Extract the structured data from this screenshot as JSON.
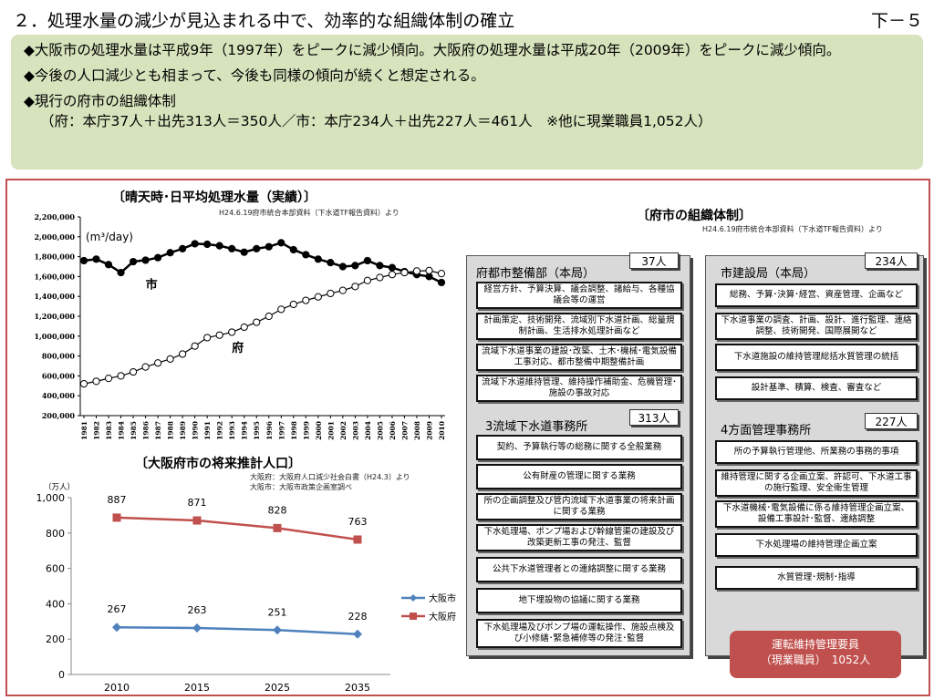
{
  "header": {
    "title": "２．処理水量の減少が見込まれる中で、効率的な組織体制の確立",
    "page": "下－５"
  },
  "summary": {
    "line1": "◆大阪市の処理水量は平成9年（1997年）をピークに減少傾向。大阪府の処理水量は平成20年（2009年）をピークに減少傾向。",
    "line2": "◆今後の人口減少とも相まって、今後も同様の傾向が続くと想定される。",
    "line3": "◆現行の府市の組織体制",
    "line4": "（府：本庁37人＋出先313人＝350人／市：本庁234人＋出先227人＝461人　※他に現業職員1,052人）"
  },
  "colors": {
    "accent": "#c0504d",
    "summary_bg": "#d6e3bc",
    "osaka_city_line": "#4f81bd",
    "osaka_pref_line": "#c0504d"
  },
  "chart_data": [
    {
      "type": "line",
      "title": "〔晴天時･日平均処理水量（実績）〕",
      "source": "H24.6.19府市統合本部資料（下水道TF報告資料）より",
      "unit_label": "(m³/day)",
      "x": [
        1981,
        1982,
        1983,
        1984,
        1985,
        1986,
        1987,
        1988,
        1989,
        1990,
        1991,
        1992,
        1993,
        1994,
        1995,
        1996,
        1997,
        1998,
        1999,
        2000,
        2001,
        2002,
        2003,
        2004,
        2005,
        2006,
        2007,
        2008,
        2009,
        2010
      ],
      "ylim": [
        200000,
        2200000
      ],
      "yticks": [
        "200,000",
        "400,000",
        "600,000",
        "800,000",
        "1,000,000",
        "1,200,000",
        "1,400,000",
        "1,600,000",
        "1,800,000",
        "2,000,000",
        "2,200,000"
      ],
      "series": [
        {
          "name": "市",
          "marker": "filled",
          "values": [
            1760000,
            1775000,
            1720000,
            1640000,
            1750000,
            1765000,
            1790000,
            1840000,
            1880000,
            1930000,
            1925000,
            1910000,
            1880000,
            1845000,
            1880000,
            1900000,
            1940000,
            1870000,
            1820000,
            1775000,
            1740000,
            1700000,
            1710000,
            1760000,
            1710000,
            1690000,
            1650000,
            1620000,
            1600000,
            1540000
          ]
        },
        {
          "name": "府",
          "marker": "open",
          "values": [
            520000,
            545000,
            575000,
            600000,
            640000,
            690000,
            730000,
            770000,
            820000,
            900000,
            985000,
            1010000,
            1040000,
            1090000,
            1140000,
            1200000,
            1270000,
            1320000,
            1360000,
            1395000,
            1430000,
            1460000,
            1500000,
            1560000,
            1590000,
            1620000,
            1640000,
            1655000,
            1660000,
            1630000
          ]
        }
      ]
    },
    {
      "type": "line",
      "title": "〔大阪府市の将来推計人口〕",
      "source_lines": [
        "大阪府：大阪府人口減少社会白書（H24.3）より",
        "大阪市：大阪市政策企画室調べ"
      ],
      "ylabel": "（万人）",
      "categories": [
        "2010",
        "2015",
        "2025",
        "2035"
      ],
      "ylim": [
        0,
        1000
      ],
      "yticks": [
        "0",
        "200",
        "400",
        "600",
        "800",
        "1,000"
      ],
      "series": [
        {
          "name": "大阪市",
          "values": [
            267,
            263,
            251,
            228
          ]
        },
        {
          "name": "大阪府",
          "values": [
            887,
            871,
            828,
            763
          ]
        }
      ]
    }
  ],
  "org": {
    "title": "〔府市の組織体制〕",
    "source": "H24.6.19府市統合本部資料（下水道TF報告資料）より",
    "pref_hq": {
      "name": "府都市整備部（本局）",
      "count": "37人",
      "duties": [
        "経営方針、予算決算、議会調整、諸給与、各種協議会等の運営",
        "計画策定、技術開発、流域別下水道計画、総量規制計画、生活排水処理計画など",
        "流域下水道事業の建設･改築、土木･機械･電気設備工事対応、都市整備中期整備計画",
        "流域下水道維持管理、維持操作補助金、危機管理･施設の事故対応"
      ]
    },
    "pref_field": {
      "name": "3流域下水道事務所",
      "count": "313人",
      "duties": [
        "契約、予算執行等の総務に関する全般業務",
        "公有財産の管理に関する業務",
        "所の企画調整及び管内流域下水道事業の将来計画に関する業務",
        "下水処理場、ポンプ場および幹線管渠の建設及び改築更新工事の発注、監督",
        "公共下水道管理者との連絡調整に関する業務",
        "地下埋設物の協議に関する業務",
        "下水処理場及びポンプ場の運転操作、施設点検及び小修繕･緊急補修等の発注･監督"
      ]
    },
    "city_hq": {
      "name": "市建設局（本局）",
      "count": "234人",
      "duties": [
        "総務、予算･決算･経営、資産管理、企画など",
        "下水道事業の調査、計画、設計、進行監理、連絡調整、技術開発、国際展開など",
        "下水道施設の維持管理総括水質管理の統括",
        "設計基準、積算、検査、審査など"
      ]
    },
    "city_field": {
      "name": "4方面管理事務所",
      "count": "227人",
      "duties": [
        "所の予算執行管理他、所業務の事務的事項",
        "維持管理に関する企画立案、許認可、下水道工事の施行監理、安全衛生管理",
        "下水道機械･電気設備に係る維持管理企画立案、設備工事設計･監督、連絡調整",
        "下水処理場の維持管理企画立案",
        "水質管理･規制･指導"
      ]
    },
    "staff": {
      "line1": "運転維持管理要員",
      "line2": "（現業職員）　1052人"
    }
  }
}
